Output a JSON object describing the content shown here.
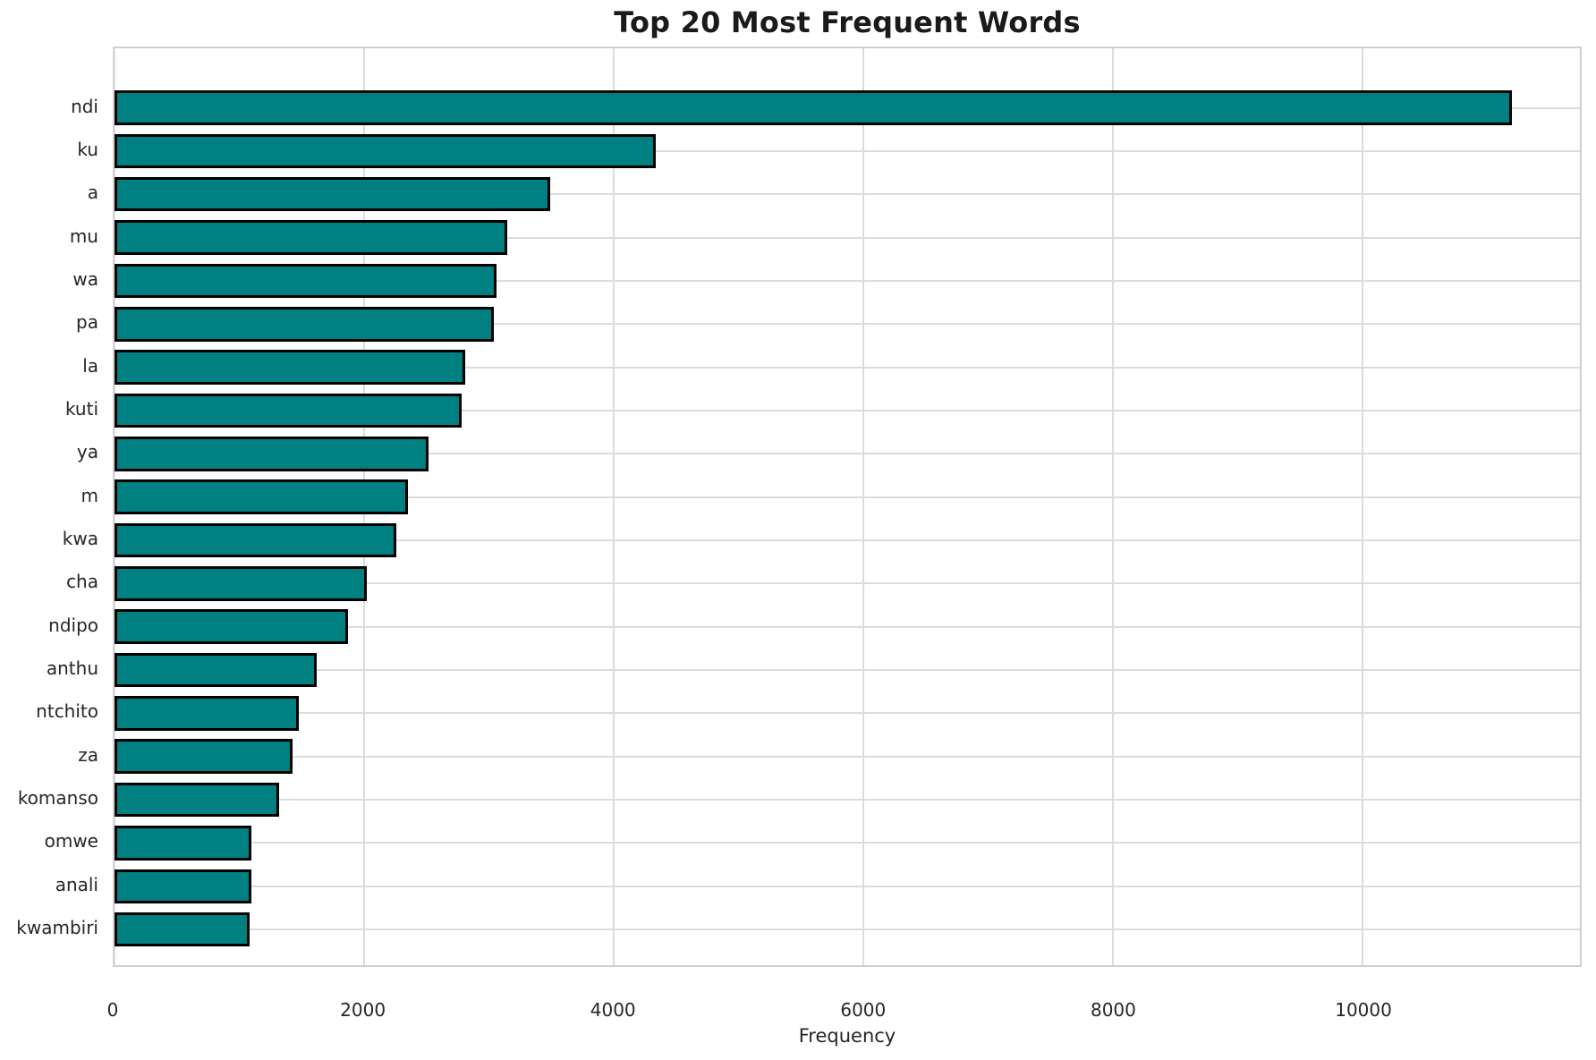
{
  "chart_data": {
    "type": "bar",
    "orientation": "horizontal",
    "title": "Top 20 Most Frequent Words",
    "xlabel": "Frequency",
    "ylabel": "",
    "categories": [
      "ndi",
      "ku",
      "a",
      "mu",
      "wa",
      "pa",
      "la",
      "kuti",
      "ya",
      "m",
      "kwa",
      "cha",
      "ndipo",
      "anthu",
      "ntchito",
      "za",
      "komanso",
      "omwe",
      "anali",
      "kwambiri"
    ],
    "values": [
      11200,
      4340,
      3490,
      3150,
      3060,
      3040,
      2810,
      2780,
      2520,
      2350,
      2260,
      2020,
      1870,
      1620,
      1480,
      1430,
      1320,
      1100,
      1095,
      1085
    ],
    "x_ticks": [
      0,
      2000,
      4000,
      6000,
      8000,
      10000
    ],
    "xlim": [
      0,
      11745
    ],
    "grid": true,
    "legend": "none",
    "bar_color": "#008080",
    "bar_edge_color": "#000000",
    "grid_color": "#dcdcdc",
    "background_color": "#ffffff"
  }
}
